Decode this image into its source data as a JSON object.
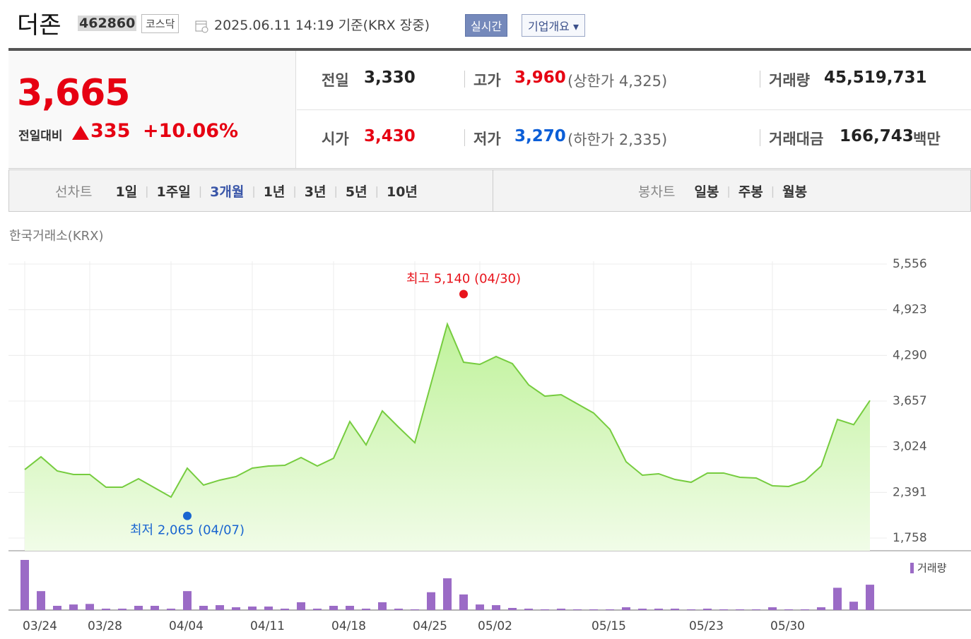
{
  "header": {
    "name": "더존",
    "code": "462860",
    "market": "코스닥",
    "timestamp": "2025.06.11 14:19  기준(KRX 장중)",
    "realtime_button": "실시간",
    "company_button": "기업개요"
  },
  "summary": {
    "price": "3,665",
    "change_label": "전일대비",
    "change": "335",
    "change_rate": "+10.06%"
  },
  "quote": {
    "prev_close": {
      "label": "전일",
      "value": "3,330"
    },
    "high": {
      "label": "고가",
      "value": "3,960",
      "limit": "(상한가 4,325)"
    },
    "volume": {
      "label": "거래량",
      "value": "45,519,731"
    },
    "open": {
      "label": "시가",
      "value": "3,430"
    },
    "low": {
      "label": "저가",
      "value": "3,270",
      "limit": "(하한가 2,335)"
    },
    "amount": {
      "label": "거래대금",
      "value": "166,743",
      "unit": "백만"
    }
  },
  "tabs": {
    "line_chart": {
      "label": "선차트",
      "periods": [
        "1일",
        "1주일",
        "3개월",
        "1년",
        "3년",
        "5년",
        "10년"
      ],
      "active": 2
    },
    "candle_chart": {
      "label": "봉차트",
      "periods": [
        "일봉",
        "주봉",
        "월봉"
      ]
    }
  },
  "chart_data": {
    "type": "area",
    "source": "한국거래소(KRX)",
    "color": "#76cc3f",
    "grid": true,
    "categories": [
      "03/24",
      null,
      null,
      null,
      "03/28",
      null,
      null,
      null,
      null,
      "04/04",
      null,
      null,
      null,
      null,
      "04/11",
      null,
      null,
      null,
      null,
      "04/18",
      null,
      null,
      null,
      null,
      "04/25",
      null,
      null,
      null,
      "05/02",
      null,
      null,
      null,
      null,
      null,
      null,
      "05/15",
      null,
      null,
      null,
      null,
      null,
      "05/23",
      null,
      null,
      null,
      null,
      "05/30",
      null,
      null,
      null,
      null,
      null,
      null
    ],
    "values": [
      2707,
      2884,
      2688,
      2639,
      2639,
      2463,
      2463,
      2580,
      2453,
      2326,
      2727,
      2492,
      2561,
      2610,
      2727,
      2756,
      2766,
      2874,
      2756,
      2864,
      3373,
      3050,
      3520,
      3295,
      3079,
      3902,
      4724,
      4195,
      4166,
      4274,
      4176,
      3882,
      3725,
      3745,
      3618,
      3491,
      3265,
      2815,
      2629,
      2649,
      2570,
      2531,
      2659,
      2659,
      2600,
      2590,
      2482,
      2473,
      2551,
      2756,
      3402,
      3330,
      3665
    ],
    "ylim": [
      1758,
      5556
    ],
    "yticks": [
      {
        "value": 1758,
        "label": "1,758"
      },
      {
        "value": 2391,
        "label": "2,391"
      },
      {
        "value": 3024,
        "label": "3,024"
      },
      {
        "value": 3657,
        "label": "3,657"
      },
      {
        "value": 4290,
        "label": "4,290"
      },
      {
        "value": 4923,
        "label": "4,923"
      },
      {
        "value": 5556,
        "label": "5,556"
      }
    ],
    "annotations": [
      {
        "text": "최고 5,140 (04/30)",
        "value": 5140,
        "index": 27,
        "color": "#e8141c"
      },
      {
        "text": "최저 2,065 (04/07)",
        "value": 2065,
        "index": 10,
        "color": "#1a66d0"
      }
    ],
    "volume": {
      "name": "거래량",
      "color": "#9b6bc6",
      "values": [
        90000000,
        34000000,
        7600000,
        10000000,
        11000000,
        2500000,
        2500000,
        7600000,
        7600000,
        2500000,
        34000000,
        7600000,
        8800000,
        5000000,
        6300000,
        6300000,
        2500000,
        14000000,
        2500000,
        7600000,
        7600000,
        2500000,
        14000000,
        2500000,
        1300000,
        32000000,
        57000000,
        28000000,
        10000000,
        8800000,
        3800000,
        2500000,
        1300000,
        2500000,
        1300000,
        1300000,
        1300000,
        5000000,
        2500000,
        2500000,
        2500000,
        1300000,
        2500000,
        1300000,
        1300000,
        1300000,
        5000000,
        1300000,
        1300000,
        5000000,
        40000000,
        15000000,
        45519731
      ]
    }
  }
}
